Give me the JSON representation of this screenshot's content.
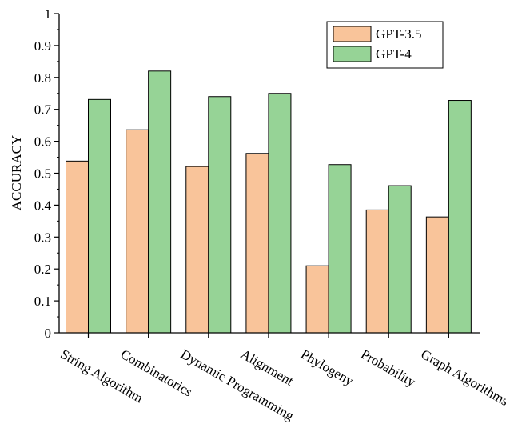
{
  "chart_data": {
    "type": "bar",
    "title": "",
    "xlabel": "",
    "ylabel": "ACCURACY",
    "ylim": [
      0,
      1
    ],
    "yticks": [
      "0",
      "0.1",
      "0.2",
      "0.3",
      "0.4",
      "0.5",
      "0.6",
      "0.7",
      "0.8",
      "0.9",
      "1"
    ],
    "categories": [
      "String Algorithm",
      "Combinatorics",
      "Dynamic Programming",
      "Alignment",
      "Phylogeny",
      "Probability",
      "Graph Algorithms"
    ],
    "series": [
      {
        "name": "GPT-3.5",
        "color": "#f9c49a",
        "values": [
          0.538,
          0.636,
          0.521,
          0.562,
          0.21,
          0.385,
          0.363
        ]
      },
      {
        "name": "GPT-4",
        "color": "#96d396",
        "values": [
          0.731,
          0.82,
          0.74,
          0.75,
          0.527,
          0.461,
          0.728
        ]
      }
    ],
    "legend_position": "top-right",
    "grid": false
  }
}
